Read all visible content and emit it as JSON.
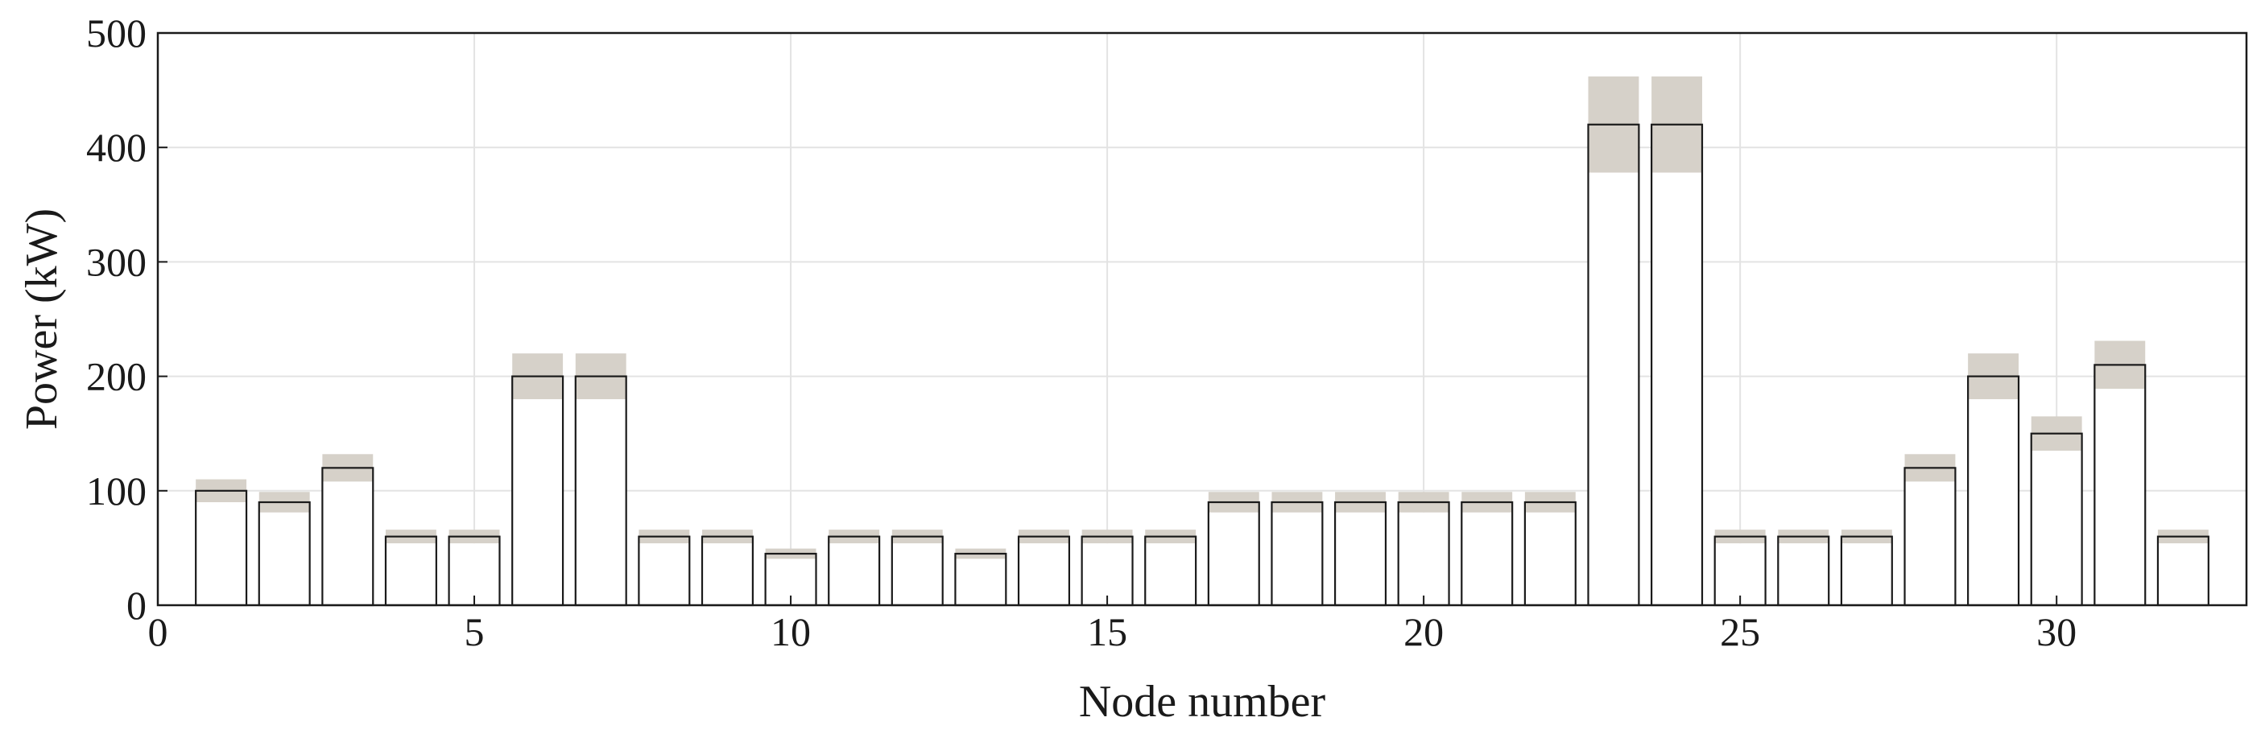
{
  "chart_data": {
    "type": "bar",
    "xlabel": "Node number",
    "ylabel": "Power (kW)",
    "xlim": [
      0,
      33
    ],
    "ylim": [
      0,
      500
    ],
    "xticks": [
      0,
      5,
      10,
      15,
      20,
      25,
      30
    ],
    "yticks": [
      0,
      100,
      200,
      300,
      400,
      500
    ],
    "grid": true,
    "categories": [
      1,
      2,
      3,
      4,
      5,
      6,
      7,
      8,
      9,
      10,
      11,
      12,
      13,
      14,
      15,
      16,
      17,
      18,
      19,
      20,
      21,
      22,
      23,
      24,
      25,
      26,
      27,
      28,
      29,
      30,
      31,
      32
    ],
    "values": [
      100,
      90,
      120,
      60,
      60,
      200,
      200,
      60,
      60,
      45,
      60,
      60,
      45,
      60,
      60,
      60,
      90,
      90,
      90,
      90,
      90,
      90,
      420,
      420,
      60,
      60,
      60,
      120,
      200,
      150,
      210,
      60
    ],
    "band_relative_range": [
      -0.1,
      0.1
    ],
    "colors": {
      "bar_fill": "#ffffff",
      "bar_edge": "#1a1a1a",
      "band_fill": "#d6d1c9",
      "grid": "#e3e3e3",
      "axis": "#1a1a1a"
    }
  }
}
